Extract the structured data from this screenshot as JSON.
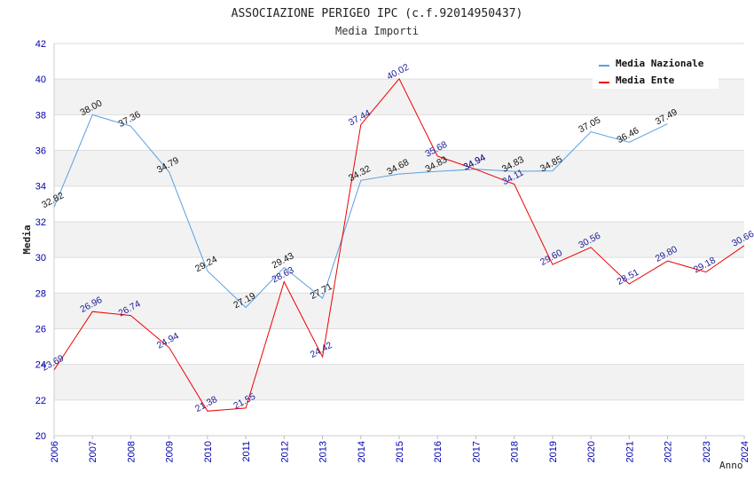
{
  "chart_data": {
    "type": "line",
    "title": "ASSOCIAZIONE PERIGEO IPC (c.f.92014950437)",
    "subtitle": "Media Importi",
    "xlabel": "Anno",
    "ylabel": "Media",
    "ylim": [
      20,
      42
    ],
    "yticks": [
      "20",
      "22",
      "24",
      "26",
      "28",
      "30",
      "32",
      "34",
      "36",
      "38",
      "40",
      "42"
    ],
    "categories": [
      "2006",
      "2007",
      "2008",
      "2009",
      "2010",
      "2011",
      "2012",
      "2013",
      "2014",
      "2015",
      "2016",
      "2017",
      "2018",
      "2019",
      "2020",
      "2021",
      "2022",
      "2023",
      "2024"
    ],
    "legend_position": "top-right",
    "grid": true,
    "series": [
      {
        "name": "Media Nazionale",
        "color": "#5aa0e0",
        "label_color": "#111111",
        "values": [
          32.82,
          38.0,
          37.36,
          34.79,
          29.24,
          27.19,
          29.43,
          27.71,
          34.32,
          34.68,
          34.83,
          34.94,
          34.83,
          34.85,
          37.05,
          36.46,
          37.49,
          null,
          null
        ],
        "labels": [
          "32.82",
          "38.00",
          "37.36",
          "34.79",
          "29.24",
          "27.19",
          "29.43",
          "27.71",
          "34.32",
          "34.68",
          "34.83",
          "34.94",
          "34.83",
          "34.85",
          "37.05",
          "36.46",
          "37.49",
          "",
          ""
        ]
      },
      {
        "name": "Media Ente",
        "color": "#ee0000",
        "label_color": "#1a1a99",
        "values": [
          23.69,
          26.96,
          26.74,
          24.94,
          21.38,
          21.55,
          28.63,
          24.42,
          37.44,
          40.02,
          35.68,
          34.94,
          34.11,
          29.6,
          30.56,
          28.51,
          29.8,
          29.18,
          30.66
        ],
        "labels": [
          "23.69",
          "26.96",
          "26.74",
          "24.94",
          "21.38",
          "21.55",
          "28.63",
          "24.42",
          "37.44",
          "40.02",
          "35.68",
          "34.94",
          "34.11",
          "29.60",
          "30.56",
          "28.51",
          "29.80",
          "29.18",
          "30.66"
        ]
      }
    ]
  }
}
